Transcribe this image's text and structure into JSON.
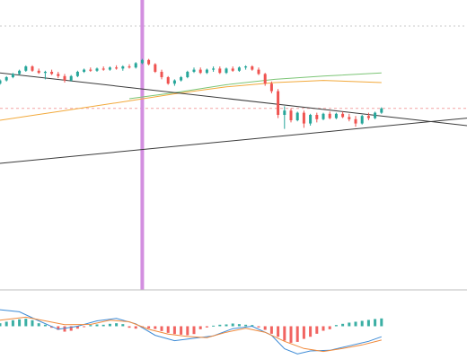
{
  "colors": {
    "background": "#ffffff",
    "bull": "#26a69a",
    "bear": "#ef5350",
    "ma_fast": "#f2a93b",
    "ma_slow": "#7cc576",
    "trendline": "#3b3b3b",
    "marker": "#d38fe0",
    "dotted_grid": "#c9c9c9",
    "last_price": "#f4a3a3",
    "macd_line": "#3d8bd6",
    "signal_line": "#f08a3c",
    "separator": "#bdbdbd"
  },
  "chart_data": [
    {
      "type": "candlestick",
      "ylim": [
        0,
        100
      ],
      "xlim": [
        0,
        130
      ],
      "candles": [
        [
          0,
          54,
          58,
          53,
          57
        ],
        [
          2,
          57,
          61,
          56,
          60
        ],
        [
          4,
          60,
          64,
          59,
          63
        ],
        [
          6,
          63,
          67,
          62,
          66
        ],
        [
          8,
          66,
          71,
          65,
          70
        ],
        [
          10,
          70,
          71,
          65,
          66
        ],
        [
          12,
          66,
          68,
          63,
          64
        ],
        [
          14,
          64,
          66,
          58,
          65
        ],
        [
          16,
          65,
          67,
          62,
          63
        ],
        [
          18,
          63,
          65,
          59,
          61
        ],
        [
          20,
          61,
          63,
          55,
          57
        ],
        [
          22,
          57,
          62,
          56,
          61
        ],
        [
          24,
          61,
          66,
          60,
          65
        ],
        [
          26,
          65,
          68,
          64,
          67
        ],
        [
          28,
          67,
          69,
          65,
          66
        ],
        [
          30,
          66,
          69,
          65,
          68
        ],
        [
          32,
          68,
          70,
          66,
          67
        ],
        [
          34,
          67,
          70,
          66,
          69
        ],
        [
          36,
          69,
          71,
          67,
          68
        ],
        [
          38,
          68,
          71,
          66,
          70
        ],
        [
          40,
          70,
          72,
          68,
          69
        ],
        [
          42,
          69,
          74,
          68,
          73
        ],
        [
          44,
          73,
          77,
          72,
          76
        ],
        [
          46,
          76,
          77,
          71,
          72
        ],
        [
          48,
          72,
          73,
          64,
          65
        ],
        [
          50,
          65,
          67,
          58,
          60
        ],
        [
          52,
          60,
          61,
          53,
          54
        ],
        [
          54,
          54,
          58,
          52,
          57
        ],
        [
          56,
          57,
          61,
          56,
          60
        ],
        [
          58,
          60,
          66,
          59,
          65
        ],
        [
          60,
          65,
          69,
          64,
          67
        ],
        [
          62,
          67,
          69,
          63,
          64
        ],
        [
          64,
          64,
          68,
          63,
          67
        ],
        [
          66,
          67,
          70,
          65,
          68
        ],
        [
          68,
          68,
          70,
          63,
          64
        ],
        [
          70,
          64,
          69,
          63,
          68
        ],
        [
          72,
          68,
          70,
          65,
          66
        ],
        [
          74,
          66,
          70,
          65,
          69
        ],
        [
          76,
          69,
          71,
          67,
          70
        ],
        [
          78,
          70,
          71,
          66,
          67
        ],
        [
          80,
          67,
          69,
          62,
          63
        ],
        [
          82,
          63,
          64,
          52,
          54
        ],
        [
          84,
          54,
          56,
          45,
          47
        ],
        [
          86,
          47,
          49,
          22,
          25
        ],
        [
          88,
          25,
          33,
          12,
          29
        ],
        [
          90,
          29,
          31,
          18,
          20
        ],
        [
          92,
          20,
          28,
          19,
          27
        ],
        [
          94,
          27,
          29,
          13,
          17
        ],
        [
          96,
          17,
          26,
          15,
          25
        ],
        [
          98,
          25,
          27,
          18,
          21
        ],
        [
          100,
          21,
          27,
          20,
          26
        ],
        [
          102,
          26,
          28,
          21,
          22
        ],
        [
          104,
          22,
          27,
          21,
          26
        ],
        [
          106,
          26,
          28,
          22,
          23
        ],
        [
          108,
          23,
          26,
          19,
          21
        ],
        [
          110,
          21,
          24,
          14,
          17
        ],
        [
          112,
          17,
          25,
          16,
          24
        ],
        [
          114,
          24,
          27,
          20,
          22
        ],
        [
          116,
          22,
          28,
          21,
          27
        ],
        [
          118,
          27,
          32,
          26,
          31
        ]
      ],
      "ma_fast": [
        [
          0,
          20
        ],
        [
          20,
          29
        ],
        [
          40,
          38
        ],
        [
          55,
          45
        ],
        [
          70,
          51
        ],
        [
          85,
          55
        ],
        [
          100,
          57
        ],
        [
          118,
          55
        ]
      ],
      "ma_slow": [
        [
          40,
          40
        ],
        [
          55,
          46
        ],
        [
          70,
          53
        ],
        [
          85,
          58
        ],
        [
          100,
          61
        ],
        [
          118,
          64
        ]
      ],
      "trendlines": [
        [
          [
            0,
            64
          ],
          [
            165,
            8
          ]
        ],
        [
          [
            0,
            -20
          ],
          [
            165,
            28
          ]
        ]
      ],
      "vertical_marker_x": 44,
      "last_price": 31
    },
    {
      "type": "histogram",
      "ylim": [
        -10,
        10
      ],
      "xlim": [
        0,
        130
      ],
      "bars": [
        [
          0,
          1
        ],
        [
          2,
          1.5
        ],
        [
          4,
          2
        ],
        [
          6,
          2.3
        ],
        [
          8,
          2.5
        ],
        [
          10,
          2
        ],
        [
          12,
          1
        ],
        [
          14,
          0.5
        ],
        [
          16,
          -0.5
        ],
        [
          18,
          -1.2
        ],
        [
          20,
          -1.8
        ],
        [
          22,
          -1.5
        ],
        [
          24,
          -0.8
        ],
        [
          26,
          -0.3
        ],
        [
          28,
          0.4
        ],
        [
          30,
          0.6
        ],
        [
          32,
          0.5
        ],
        [
          34,
          0.8
        ],
        [
          36,
          1
        ],
        [
          38,
          0.7
        ],
        [
          40,
          -0.5
        ],
        [
          42,
          -0.8
        ],
        [
          44,
          -0.5
        ],
        [
          46,
          -0.7
        ],
        [
          48,
          -0.9
        ],
        [
          50,
          -1.6
        ],
        [
          52,
          -2.2
        ],
        [
          54,
          -2.6
        ],
        [
          56,
          -2.8
        ],
        [
          58,
          -3
        ],
        [
          60,
          -2.6
        ],
        [
          62,
          -1
        ],
        [
          64,
          -0.4
        ],
        [
          66,
          0.2
        ],
        [
          68,
          0.5
        ],
        [
          70,
          0.6
        ],
        [
          72,
          0.9
        ],
        [
          74,
          0.7
        ],
        [
          76,
          0.5
        ],
        [
          78,
          0.4
        ],
        [
          80,
          -0.4
        ],
        [
          82,
          -1.2
        ],
        [
          84,
          -2.5
        ],
        [
          86,
          -3.5
        ],
        [
          88,
          -4.8
        ],
        [
          90,
          -5.5
        ],
        [
          92,
          -5.2
        ],
        [
          94,
          -4.2
        ],
        [
          96,
          -3.5
        ],
        [
          98,
          -2.5
        ],
        [
          100,
          -1.5
        ],
        [
          102,
          -1
        ],
        [
          104,
          0.4
        ],
        [
          106,
          0.8
        ],
        [
          108,
          1.2
        ],
        [
          110,
          1.5
        ],
        [
          112,
          1.8
        ],
        [
          114,
          2.1
        ],
        [
          116,
          2.4
        ],
        [
          118,
          2.6
        ]
      ],
      "macd": [
        [
          0,
          5.5
        ],
        [
          6,
          4.8
        ],
        [
          12,
          1.8
        ],
        [
          18,
          -1
        ],
        [
          24,
          0
        ],
        [
          30,
          1.8
        ],
        [
          36,
          2.6
        ],
        [
          42,
          0.8
        ],
        [
          48,
          -3
        ],
        [
          54,
          -4.8
        ],
        [
          60,
          -4
        ],
        [
          66,
          -3.2
        ],
        [
          72,
          -0.8
        ],
        [
          78,
          0
        ],
        [
          84,
          -3
        ],
        [
          88,
          -7.5
        ],
        [
          92,
          -9.2
        ],
        [
          96,
          -8.2
        ],
        [
          102,
          -8
        ],
        [
          108,
          -6.5
        ],
        [
          114,
          -5
        ],
        [
          118,
          -3.5
        ]
      ],
      "signal": [
        [
          0,
          2
        ],
        [
          8,
          3
        ],
        [
          14,
          1.8
        ],
        [
          20,
          0.5
        ],
        [
          28,
          0.6
        ],
        [
          34,
          2
        ],
        [
          40,
          1.5
        ],
        [
          46,
          -1
        ],
        [
          52,
          -2.6
        ],
        [
          58,
          -3.4
        ],
        [
          64,
          -3.8
        ],
        [
          70,
          -2
        ],
        [
          76,
          -0.7
        ],
        [
          82,
          -2
        ],
        [
          88,
          -5
        ],
        [
          94,
          -7.4
        ],
        [
          100,
          -8.4
        ],
        [
          106,
          -7.4
        ],
        [
          112,
          -6.2
        ],
        [
          118,
          -4.6
        ]
      ]
    }
  ]
}
